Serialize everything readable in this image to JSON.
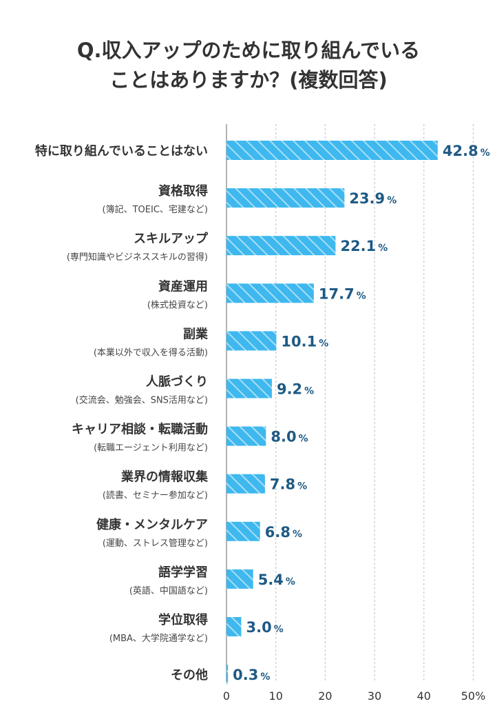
{
  "title": {
    "line1": "Q.収入アップのために取り組んでいる",
    "line2": "ことはありますか？(複数回答)"
  },
  "colors": {
    "bar": "#3eb8ee",
    "bar_hatch": "#ffffff",
    "value_text": "#1e5a84",
    "grid": "#c8c8c8",
    "axis": "#999999"
  },
  "chart_data": {
    "type": "bar",
    "orientation": "horizontal",
    "categories": [
      {
        "label": "特に取り組んでいることはない",
        "sub": ""
      },
      {
        "label": "資格取得",
        "sub": "(簿記、TOEIC、宅建など)"
      },
      {
        "label": "スキルアップ",
        "sub": "(専門知識やビジネススキルの習得)"
      },
      {
        "label": "資産運用",
        "sub": "(株式投資など)"
      },
      {
        "label": "副業",
        "sub": "(本業以外で収入を得る活動)"
      },
      {
        "label": "人脈づくり",
        "sub": "(交流会、勉強会、SNS活用など)"
      },
      {
        "label": "キャリア相談・転職活動",
        "sub": "(転職エージェント利用など)"
      },
      {
        "label": "業界の情報収集",
        "sub": "(読書、セミナー参加など)"
      },
      {
        "label": "健康・メンタルケア",
        "sub": "(運動、ストレス管理など)"
      },
      {
        "label": "語学学習",
        "sub": "(英語、中国語など)"
      },
      {
        "label": "学位取得",
        "sub": "(MBA、大学院通学など)"
      },
      {
        "label": "その他",
        "sub": ""
      }
    ],
    "values": [
      42.8,
      23.9,
      22.1,
      17.7,
      10.1,
      9.2,
      8.0,
      7.8,
      6.8,
      5.4,
      3.0,
      0.3
    ],
    "value_labels": [
      "42.8",
      "23.9",
      "22.1",
      "17.7",
      "10.1",
      "9.2",
      "8.0",
      "7.8",
      "6.8",
      "5.4",
      "3.0",
      "0.3"
    ],
    "value_unit": "%",
    "xlim": [
      0,
      50
    ],
    "x_ticks": [
      0,
      10,
      20,
      30,
      40,
      50
    ],
    "x_tick_labels": [
      "0",
      "10",
      "20",
      "30",
      "40",
      "50%"
    ],
    "grid": true,
    "legend": "none"
  }
}
